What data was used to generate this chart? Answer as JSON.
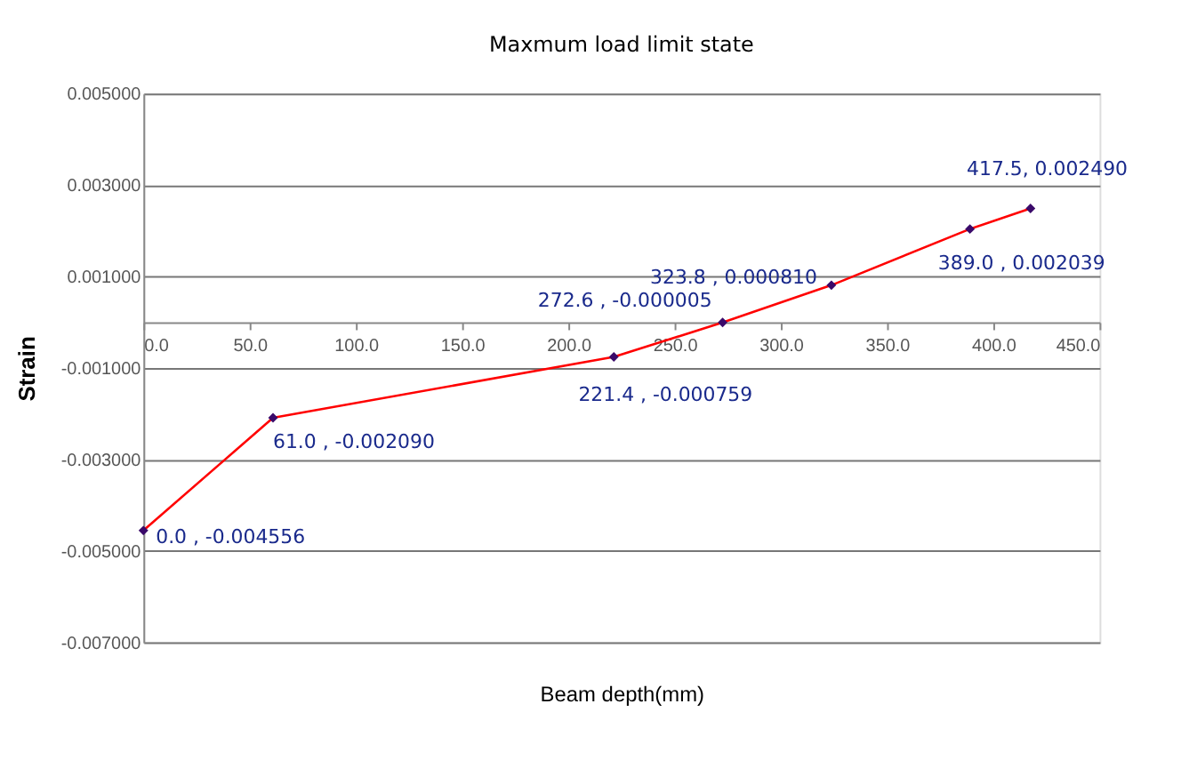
{
  "chart_data": {
    "type": "line",
    "title": "Maxmum load limit state",
    "xlabel": "Beam depth(mm)",
    "ylabel": "Strain",
    "x": [
      0.0,
      61.0,
      221.4,
      272.6,
      323.8,
      389.0,
      417.5
    ],
    "series": [
      {
        "color": "#ff0000",
        "values": [
          -0.004556,
          -0.00209,
          -0.000759,
          -5e-06,
          0.00081,
          0.002039,
          0.00249
        ],
        "value_labels": [
          "0.0 , -0.004556",
          "61.0 , -0.002090",
          "221.4 , -0.000759",
          "272.6 , -0.000005",
          "323.8 , 0.000810",
          "389.0 , 0.002039",
          "417.5, 0.002490"
        ]
      }
    ],
    "marker": "diamond",
    "line_style": "solid",
    "grid": "y",
    "xlim": [
      0,
      450
    ],
    "ylim": [
      -0.007,
      0.005
    ],
    "xticks": [
      {
        "value": 0,
        "label": "0.0"
      },
      {
        "value": 50,
        "label": "50.0"
      },
      {
        "value": 100,
        "label": "100.0"
      },
      {
        "value": 150,
        "label": "150.0"
      },
      {
        "value": 200,
        "label": "200.0"
      },
      {
        "value": 250,
        "label": "250.0"
      },
      {
        "value": 300,
        "label": "300.0"
      },
      {
        "value": 350,
        "label": "350.0"
      },
      {
        "value": 400,
        "label": "400.0"
      },
      {
        "value": 450,
        "label": "450.0"
      }
    ],
    "yticks": [
      {
        "value": -0.007,
        "label": "-0.007000"
      },
      {
        "value": -0.005,
        "label": "-0.005000"
      },
      {
        "value": -0.003,
        "label": "-0.003000"
      },
      {
        "value": -0.001,
        "label": "-0.001000"
      },
      {
        "value": 0.001,
        "label": "0.001000"
      },
      {
        "value": 0.003,
        "label": "0.003000"
      },
      {
        "value": 0.005,
        "label": "0.005000"
      }
    ]
  }
}
